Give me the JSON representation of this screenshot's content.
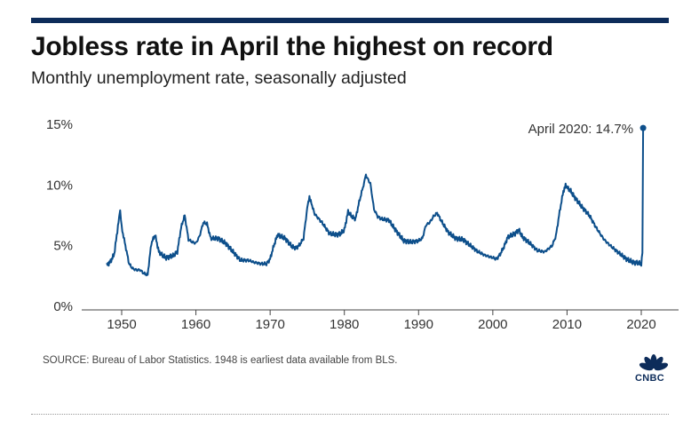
{
  "header": {
    "title": "Jobless rate in April the highest on record",
    "subtitle": "Monthly unemployment rate, seasonally adjusted"
  },
  "footer": {
    "source": "SOURCE: Bureau of Labor Statistics. 1948 is earliest data available from BLS.",
    "logo_text": "CNBC"
  },
  "colors": {
    "line": "#0d4f8b",
    "rule": "#0d2c5a",
    "logo": "#0d2c5a"
  },
  "chart_data": {
    "type": "line",
    "title": "Jobless rate in April the highest on record",
    "subtitle": "Monthly unemployment rate, seasonally adjusted",
    "xlabel": "",
    "ylabel": "",
    "ylim": [
      0,
      15
    ],
    "xlim": [
      1947,
      2021
    ],
    "y_ticks": [
      {
        "value": 0,
        "label": "0%"
      },
      {
        "value": 5,
        "label": "5%"
      },
      {
        "value": 10,
        "label": "10%"
      },
      {
        "value": 15,
        "label": "15%"
      }
    ],
    "x_ticks": [
      {
        "value": 1950,
        "label": "1950"
      },
      {
        "value": 1960,
        "label": "1960"
      },
      {
        "value": 1970,
        "label": "1970"
      },
      {
        "value": 1980,
        "label": "1980"
      },
      {
        "value": 1990,
        "label": "1990"
      },
      {
        "value": 2000,
        "label": "2000"
      },
      {
        "value": 2010,
        "label": "2010"
      },
      {
        "value": 2020,
        "label": "2020"
      }
    ],
    "grid": false,
    "series": [
      {
        "x": [
          1948.0,
          1948.5,
          1949.0,
          1949.5,
          1949.8,
          1950.0,
          1950.5,
          1951.0,
          1951.5,
          1952.0,
          1952.5,
          1953.0,
          1953.5,
          1954.0,
          1954.5,
          1955.0,
          1955.5,
          1956.0,
          1957.0,
          1957.5,
          1958.0,
          1958.5,
          1959.0,
          1959.5,
          1960.0,
          1960.5,
          1961.0,
          1961.5,
          1962.0,
          1963.0,
          1964.0,
          1965.0,
          1966.0,
          1967.0,
          1968.0,
          1969.0,
          1969.5,
          1970.0,
          1970.5,
          1971.0,
          1972.0,
          1973.0,
          1973.5,
          1974.0,
          1974.5,
          1975.0,
          1975.3,
          1976.0,
          1977.0,
          1978.0,
          1979.0,
          1979.5,
          1980.0,
          1980.5,
          1981.0,
          1981.5,
          1982.0,
          1982.5,
          1982.9,
          1983.5,
          1984.0,
          1984.5,
          1985.0,
          1986.0,
          1987.0,
          1988.0,
          1989.0,
          1990.0,
          1990.5,
          1991.0,
          1991.5,
          1992.0,
          1992.5,
          1993.0,
          1994.0,
          1995.0,
          1996.0,
          1997.0,
          1998.0,
          1999.0,
          2000.0,
          2000.5,
          2001.0,
          2001.5,
          2002.0,
          2003.0,
          2003.5,
          2004.0,
          2005.0,
          2006.0,
          2007.0,
          2008.0,
          2008.5,
          2009.0,
          2009.5,
          2009.8,
          2010.0,
          2010.5,
          2011.0,
          2012.0,
          2013.0,
          2014.0,
          2015.0,
          2016.0,
          2017.0,
          2018.0,
          2019.0,
          2019.5,
          2020.0,
          2020.15,
          2020.25
        ],
        "y": [
          3.4,
          3.7,
          4.3,
          6.6,
          7.9,
          6.5,
          5.0,
          3.5,
          3.1,
          3.0,
          3.0,
          2.7,
          2.6,
          5.2,
          5.9,
          4.5,
          4.2,
          4.0,
          4.2,
          4.5,
          6.5,
          7.5,
          5.5,
          5.3,
          5.2,
          5.8,
          6.9,
          6.8,
          5.6,
          5.6,
          5.2,
          4.5,
          3.8,
          3.8,
          3.6,
          3.5,
          3.5,
          3.9,
          5.0,
          5.9,
          5.6,
          4.9,
          4.8,
          5.1,
          5.6,
          8.1,
          9.0,
          7.6,
          6.9,
          6.0,
          5.9,
          6.0,
          6.3,
          7.8,
          7.4,
          7.2,
          8.6,
          9.8,
          10.8,
          10.1,
          8.0,
          7.4,
          7.2,
          7.1,
          6.2,
          5.4,
          5.3,
          5.4,
          5.6,
          6.7,
          6.9,
          7.4,
          7.7,
          7.1,
          6.1,
          5.6,
          5.5,
          5.0,
          4.5,
          4.2,
          4.0,
          3.9,
          4.3,
          4.9,
          5.7,
          6.0,
          6.3,
          5.7,
          5.2,
          4.6,
          4.5,
          5.0,
          5.8,
          7.8,
          9.5,
          10.0,
          9.8,
          9.5,
          9.0,
          8.2,
          7.5,
          6.4,
          5.5,
          4.9,
          4.4,
          3.9,
          3.6,
          3.6,
          3.5,
          4.4,
          14.7
        ],
        "annotation": {
          "x": 2020.25,
          "y": 14.7,
          "label": "April 2020: 14.7%"
        }
      }
    ]
  }
}
